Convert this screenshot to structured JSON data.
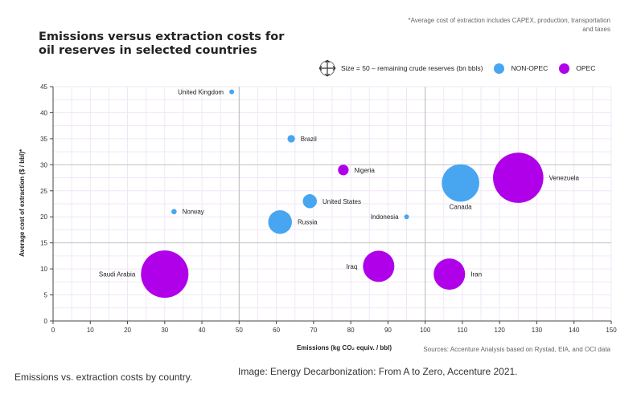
{
  "colors": {
    "opec": "#b000ea",
    "non_opec": "#48a6f0",
    "title": "#b000ea"
  },
  "note": "*Average cost of extraction includes CAPEX, production, transportation and taxes",
  "legend": {
    "size_icon": "arrows-move-icon",
    "size_label": "Size = 50 – remaining crude reserves (bn bbls)",
    "non_opec_label": "NON-OPEC",
    "opec_label": "OPEC"
  },
  "source": "Sources: Accenture Analysis based on Rystad, EIA, and OCI data",
  "caption_left": "Emissions vs. extraction costs by country.",
  "caption_right": "Image: Energy Decarbonization: From A to Zero, Accenture 2021.",
  "chart_data": {
    "type": "scatter",
    "title": "Emissions versus extraction costs for oil reserves in selected countries",
    "xlabel": "Emissions (kg CO₂ equiv. / bbl)",
    "ylabel": "Average cost of extraction ($ / bbl)*",
    "xlim": [
      0,
      150
    ],
    "ylim": [
      0,
      45
    ],
    "xticks": [
      0,
      10,
      20,
      30,
      40,
      50,
      60,
      70,
      80,
      90,
      100,
      110,
      120,
      130,
      140,
      150
    ],
    "yticks": [
      0,
      5,
      10,
      15,
      20,
      25,
      30,
      35,
      40,
      45
    ],
    "reference_lines": {
      "x": [
        50,
        100
      ],
      "y": [
        15,
        30
      ]
    },
    "grid": true,
    "legend_position": "top-right",
    "points": [
      {
        "label": "United Kingdom",
        "x": 48,
        "y": 44,
        "size": 0.5,
        "group": "non_opec",
        "label_side": "left"
      },
      {
        "label": "Brazil",
        "x": 64,
        "y": 35,
        "size": 2,
        "group": "non_opec",
        "label_side": "right"
      },
      {
        "label": "Nigeria",
        "x": 78,
        "y": 29,
        "size": 4,
        "group": "opec",
        "label_side": "right"
      },
      {
        "label": "Canada",
        "x": 109.5,
        "y": 26.5,
        "size": 50,
        "group": "non_opec",
        "label_side": "below"
      },
      {
        "label": "Venezuela",
        "x": 125,
        "y": 27.5,
        "size": 90,
        "group": "opec",
        "label_side": "right"
      },
      {
        "label": "United States",
        "x": 69,
        "y": 23,
        "size": 7,
        "group": "non_opec",
        "label_side": "right"
      },
      {
        "label": "Norway",
        "x": 32.5,
        "y": 21,
        "size": 1,
        "group": "non_opec",
        "label_side": "right"
      },
      {
        "label": "Indonesia",
        "x": 95,
        "y": 20,
        "size": 0.5,
        "group": "non_opec",
        "label_side": "left"
      },
      {
        "label": "Russia",
        "x": 61,
        "y": 19,
        "size": 20,
        "group": "non_opec",
        "label_side": "right"
      },
      {
        "label": "Saudi Arabia",
        "x": 30,
        "y": 9,
        "size": 80,
        "group": "opec",
        "label_side": "left"
      },
      {
        "label": "Iraq",
        "x": 87.5,
        "y": 10.5,
        "size": 35,
        "group": "opec",
        "label_side": "left"
      },
      {
        "label": "Iran",
        "x": 106.5,
        "y": 9,
        "size": 35,
        "group": "opec",
        "label_side": "right"
      }
    ]
  }
}
